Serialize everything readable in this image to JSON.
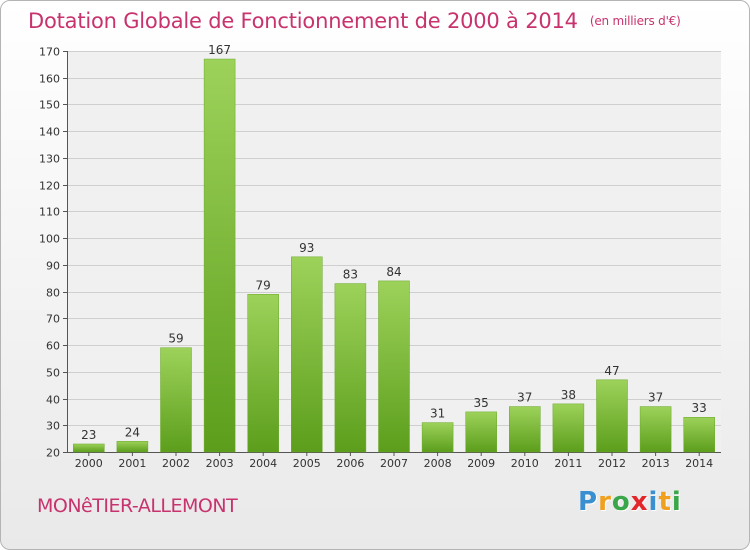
{
  "title": "Dotation Globale de Fonctionnement de 2000 à 2014",
  "subtitle": "(en milliers d'€)",
  "commune": "MONêTIER-ALLEMONT",
  "logo": {
    "text": "Proxiti",
    "letters": [
      {
        "ch": "P",
        "color": "#3a8fd0"
      },
      {
        "ch": "r",
        "color": "#f0a01e"
      },
      {
        "ch": "o",
        "color": "#3aa64a"
      },
      {
        "ch": "x",
        "color": "#e3262a"
      },
      {
        "ch": "i",
        "color": "#3a8fd0"
      },
      {
        "ch": "t",
        "color": "#f0a01e"
      },
      {
        "ch": "i",
        "color": "#3aa64a"
      }
    ]
  },
  "colors": {
    "title": "#c8336e",
    "bar_top": "#9dd25a",
    "bar_bottom": "#5c9e1c",
    "grid": "#cfcfcf",
    "text": "#333333"
  },
  "chart_data": {
    "type": "bar",
    "title": "Dotation Globale de Fonctionnement de 2000 à 2014",
    "ylabel": "",
    "xlabel": "",
    "categories": [
      "2000",
      "2001",
      "2002",
      "2003",
      "2004",
      "2005",
      "2006",
      "2007",
      "2008",
      "2009",
      "2010",
      "2011",
      "2012",
      "2013",
      "2014"
    ],
    "values": [
      23,
      24,
      59,
      167,
      79,
      93,
      83,
      84,
      31,
      35,
      37,
      38,
      47,
      37,
      33
    ],
    "ylim": [
      20,
      170
    ],
    "yticks": [
      20,
      30,
      40,
      50,
      60,
      70,
      80,
      90,
      100,
      110,
      120,
      130,
      140,
      150,
      160,
      170
    ],
    "grid": true
  }
}
